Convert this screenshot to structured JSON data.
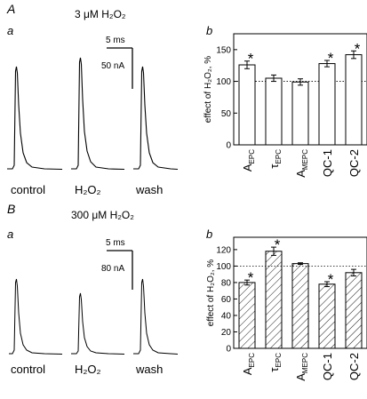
{
  "panels": [
    {
      "letter": "A",
      "condition": "3 μM H₂O₂",
      "traces_letter": "a",
      "chart_letter": "b",
      "scale_time": "5 ms",
      "scale_current": "50 nA",
      "trace_labels": [
        "control",
        "H₂O₂",
        "wash"
      ]
    },
    {
      "letter": "B",
      "condition": "300 μM H₂O₂",
      "traces_letter": "a",
      "chart_letter": "b",
      "scale_time": "5 ms",
      "scale_current": "80 nA",
      "trace_labels": [
        "control",
        "H₂O₂",
        "wash"
      ]
    }
  ],
  "chart_data": [
    {
      "type": "bar",
      "title": "",
      "xlabel": "",
      "ylabel": "effect of H₂O₂, %",
      "ylim": [
        0,
        175
      ],
      "yticks": [
        0,
        50,
        100,
        150
      ],
      "reference_line": 100,
      "fill": "open",
      "categories": [
        "A EPC",
        "τ EPC",
        "A MEPC",
        "QC-1",
        "QC-2"
      ],
      "category_labels": [
        {
          "main": "A",
          "sub": "EPC"
        },
        {
          "main": "τ",
          "sub": "EPC"
        },
        {
          "main": "A",
          "sub": "MEPC"
        },
        {
          "main": "QC-1",
          "sub": ""
        },
        {
          "main": "QC-2",
          "sub": ""
        }
      ],
      "values": [
        126,
        105,
        99,
        128,
        142
      ],
      "errors": [
        6,
        5,
        5,
        5,
        6
      ],
      "significant": [
        true,
        false,
        false,
        true,
        true
      ],
      "sig_mark": "*"
    },
    {
      "type": "bar",
      "title": "",
      "xlabel": "",
      "ylabel": "effect of H₂O₂, %",
      "ylim": [
        0,
        135
      ],
      "yticks": [
        0,
        20,
        40,
        60,
        80,
        100,
        120
      ],
      "reference_line": 100,
      "fill": "hatched",
      "categories": [
        "A EPC",
        "τ EPC",
        "A MEPC",
        "QC-1",
        "QC-2"
      ],
      "category_labels": [
        {
          "main": "A",
          "sub": "EPC"
        },
        {
          "main": "τ",
          "sub": "EPC"
        },
        {
          "main": "A",
          "sub": "MEPC"
        },
        {
          "main": "QC-1",
          "sub": ""
        },
        {
          "main": "QC-2",
          "sub": ""
        }
      ],
      "values": [
        80,
        118,
        103,
        78,
        92
      ],
      "errors": [
        3,
        5,
        1,
        3,
        4
      ],
      "significant": [
        true,
        true,
        false,
        true,
        false
      ],
      "sig_mark": "*"
    }
  ]
}
